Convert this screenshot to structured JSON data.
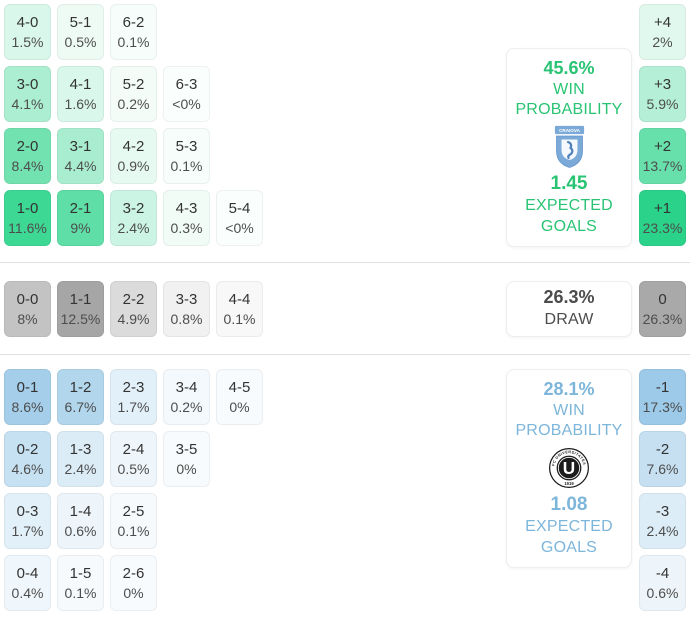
{
  "accent": {
    "home_green_text": "#29c473",
    "away_blue_text": "#7db6db",
    "draw_gray_text": "#4c4c4c",
    "score_text": "#333333",
    "pct_text": "#4d4d4d",
    "divider": "#e0e0e0"
  },
  "home_panel": {
    "win_pct": "45.6%",
    "win_label_line1": "WIN",
    "win_label_line2": "PROBABILITY",
    "expected_goals": "1.45",
    "expected_label_line1": "EXPECTED",
    "expected_label_line2": "GOALS",
    "crest": {
      "icon": "craiova-crest-icon",
      "banner_text": "CRAIOVA",
      "shield_color": "#7ba9d8",
      "detail_color": "#4f82bc"
    }
  },
  "draw_panel": {
    "pct": "26.3%",
    "label": "DRAW"
  },
  "away_panel": {
    "win_pct": "28.1%",
    "win_label_line1": "WIN",
    "win_label_line2": "PROBABILITY",
    "expected_goals": "1.08",
    "expected_label_line1": "EXPECTED",
    "expected_label_line2": "GOALS",
    "crest": {
      "icon": "ucluj-crest-icon",
      "ring_text": "FC UNIVERSITATEA CLUJ",
      "year": "1919",
      "letter": "U",
      "ring_color": "#1c1c1c"
    }
  },
  "score_grid": {
    "rows": [
      {
        "section": "home",
        "cells": [
          {
            "score": "4-0",
            "pct": "1.5%",
            "bg": "#daf7eb"
          },
          {
            "score": "5-1",
            "pct": "0.5%",
            "bg": "#eefbf5"
          },
          {
            "score": "6-2",
            "pct": "0.1%",
            "bg": "#f6fdfa"
          }
        ]
      },
      {
        "section": "home",
        "cells": [
          {
            "score": "3-0",
            "pct": "4.1%",
            "bg": "#aceed2"
          },
          {
            "score": "4-1",
            "pct": "1.6%",
            "bg": "#d9f7ea"
          },
          {
            "score": "5-2",
            "pct": "0.2%",
            "bg": "#f4fcf8"
          },
          {
            "score": "6-3",
            "pct": "<0%",
            "bg": "#fafefc"
          }
        ]
      },
      {
        "section": "home",
        "cells": [
          {
            "score": "2-0",
            "pct": "8.4%",
            "bg": "#73e2b1"
          },
          {
            "score": "3-1",
            "pct": "4.4%",
            "bg": "#a9edd0"
          },
          {
            "score": "4-2",
            "pct": "0.9%",
            "bg": "#e7faf2"
          },
          {
            "score": "5-3",
            "pct": "0.1%",
            "bg": "#f6fdfa"
          }
        ]
      },
      {
        "section": "home",
        "cells": [
          {
            "score": "1-0",
            "pct": "11.6%",
            "bg": "#3ed895"
          },
          {
            "score": "2-1",
            "pct": "9%",
            "bg": "#5fdfa7"
          },
          {
            "score": "3-2",
            "pct": "2.4%",
            "bg": "#ccf4e4"
          },
          {
            "score": "4-3",
            "pct": "0.3%",
            "bg": "#f2fcf7"
          },
          {
            "score": "5-4",
            "pct": "<0%",
            "bg": "#fafefc"
          }
        ]
      },
      {
        "section": "draw",
        "cells": [
          {
            "score": "0-0",
            "pct": "8%",
            "bg": "#c3c3c3"
          },
          {
            "score": "1-1",
            "pct": "12.5%",
            "bg": "#a6a6a6"
          },
          {
            "score": "2-2",
            "pct": "4.9%",
            "bg": "#dbdbdb"
          },
          {
            "score": "3-3",
            "pct": "0.8%",
            "bg": "#f1f1f1"
          },
          {
            "score": "4-4",
            "pct": "0.1%",
            "bg": "#f8f8f8"
          }
        ]
      },
      {
        "section": "away",
        "cells": [
          {
            "score": "0-1",
            "pct": "8.6%",
            "bg": "#a4cee9"
          },
          {
            "score": "1-2",
            "pct": "6.7%",
            "bg": "#b2d6ec"
          },
          {
            "score": "2-3",
            "pct": "1.7%",
            "bg": "#e2f0f9"
          },
          {
            "score": "3-4",
            "pct": "0.2%",
            "bg": "#f4f9fd"
          },
          {
            "score": "4-5",
            "pct": "0%",
            "bg": "#f8fbfd"
          }
        ]
      },
      {
        "section": "away",
        "cells": [
          {
            "score": "0-2",
            "pct": "4.6%",
            "bg": "#c6e1f2"
          },
          {
            "score": "1-3",
            "pct": "2.4%",
            "bg": "#dcecf7"
          },
          {
            "score": "2-4",
            "pct": "0.5%",
            "bg": "#eff6fb"
          },
          {
            "score": "3-5",
            "pct": "0%",
            "bg": "#f8fbfd"
          }
        ]
      },
      {
        "section": "away",
        "cells": [
          {
            "score": "0-3",
            "pct": "1.7%",
            "bg": "#e2f0f9"
          },
          {
            "score": "1-4",
            "pct": "0.6%",
            "bg": "#edf5fb"
          },
          {
            "score": "2-5",
            "pct": "0.1%",
            "bg": "#f6fafd"
          }
        ]
      },
      {
        "section": "away",
        "cells": [
          {
            "score": "0-4",
            "pct": "0.4%",
            "bg": "#f0f7fc"
          },
          {
            "score": "1-5",
            "pct": "0.1%",
            "bg": "#f6fafd"
          },
          {
            "score": "2-6",
            "pct": "0%",
            "bg": "#f8fbfd"
          }
        ]
      }
    ]
  },
  "diff_column": {
    "cells": [
      {
        "label": "+4",
        "pct": "2%",
        "bg": "#e1f8ee"
      },
      {
        "label": "+3",
        "pct": "5.9%",
        "bg": "#b5efd7"
      },
      {
        "label": "+2",
        "pct": "13.7%",
        "bg": "#68e0ac"
      },
      {
        "label": "+1",
        "pct": "23.3%",
        "bg": "#2bd289"
      },
      {
        "label": "0",
        "pct": "26.3%",
        "bg": "#a9a9a9"
      },
      {
        "label": "-1",
        "pct": "17.3%",
        "bg": "#9ccae8"
      },
      {
        "label": "-2",
        "pct": "7.6%",
        "bg": "#c6e0f1"
      },
      {
        "label": "-3",
        "pct": "2.4%",
        "bg": "#ddedf7"
      },
      {
        "label": "-4",
        "pct": "0.6%",
        "bg": "#eef5fa"
      }
    ]
  }
}
